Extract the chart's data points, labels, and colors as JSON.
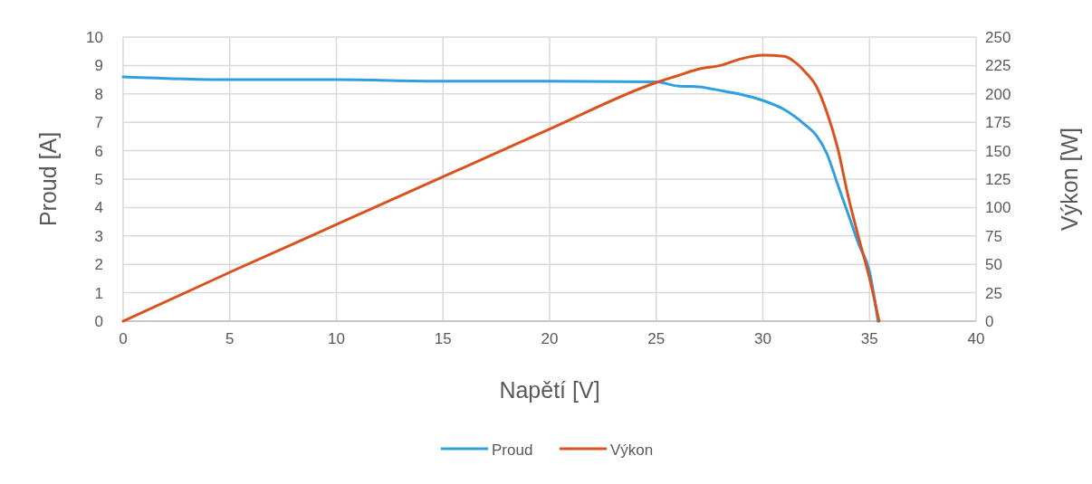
{
  "chart_data": {
    "type": "line",
    "xlabel": "Napětí [V]",
    "ylabel": "Proud [A]",
    "y2label": "Výkon [W]",
    "xlim": [
      0,
      40
    ],
    "xticks": [
      0,
      5,
      10,
      15,
      20,
      25,
      30,
      35,
      40
    ],
    "ylim": [
      0,
      10
    ],
    "yticks": [
      0,
      1,
      2,
      3,
      4,
      5,
      6,
      7,
      8,
      9,
      10
    ],
    "y2lim": [
      0,
      250
    ],
    "y2ticks": [
      0,
      25,
      50,
      75,
      100,
      125,
      150,
      175,
      200,
      225,
      250
    ],
    "grid": true,
    "legend": "bottom",
    "marker": "none",
    "series": [
      {
        "name": "Proud",
        "color": "#2e9fe0",
        "x": [
          0,
          5,
          10,
          15,
          20,
          25,
          26,
          27,
          28,
          29,
          30,
          31,
          32,
          32.5,
          33,
          33.5,
          34,
          34.5,
          35,
          35.4
        ],
        "values": [
          8.6,
          8.5,
          8.5,
          8.45,
          8.45,
          8.42,
          8.28,
          8.25,
          8.12,
          7.98,
          7.77,
          7.45,
          6.9,
          6.55,
          5.9,
          4.83,
          3.77,
          2.7,
          1.75,
          0
        ]
      },
      {
        "name": "Výkon",
        "color": "#d9531e",
        "axis": "y2",
        "x": [
          0,
          5,
          10,
          15,
          20,
          25,
          26,
          27,
          28,
          29,
          30,
          31,
          31.5,
          32,
          32.5,
          33,
          33.5,
          34,
          34.5,
          35,
          35.45
        ],
        "values": [
          0,
          43,
          85,
          127,
          169,
          210,
          216,
          222,
          225,
          231,
          234,
          233,
          228,
          219,
          207,
          184,
          153,
          110,
          73,
          38,
          0
        ]
      }
    ]
  }
}
